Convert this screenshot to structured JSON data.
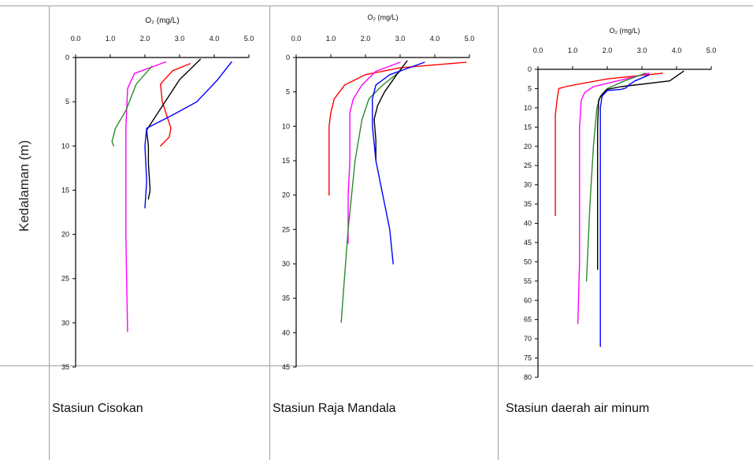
{
  "table": {
    "ylabel": "Kedalaman (m)",
    "stations": [
      "Stasiun Cisokan",
      "Stasiun Raja Mandala",
      "Stasiun daerah air minum"
    ]
  },
  "chart_data": [
    {
      "type": "line",
      "title": "O₂ (mg/L)",
      "xlabel": "O₂ (mg/L)",
      "ylabel": "Kedalaman (m)",
      "x_axis_position": "top",
      "xlim": [
        0,
        5
      ],
      "xticks": [
        "0.0",
        "1.0",
        "2.0",
        "3.0",
        "4.0",
        "5.0"
      ],
      "ylim": [
        0,
        35
      ],
      "y_inverted": true,
      "yticks": [
        "0",
        "5",
        "10",
        "15",
        "20",
        "25",
        "30",
        "35"
      ],
      "series": [
        {
          "color": "#ff00ff",
          "points": [
            [
              2.6,
              0.5
            ],
            [
              1.7,
              1.8
            ],
            [
              1.5,
              3.5
            ],
            [
              1.45,
              8
            ],
            [
              1.45,
              15
            ],
            [
              1.45,
              20
            ],
            [
              1.47,
              25
            ],
            [
              1.5,
              31
            ]
          ]
        },
        {
          "color": "#2b8a2b",
          "points": [
            [
              2.2,
              1
            ],
            [
              1.75,
              3
            ],
            [
              1.45,
              6
            ],
            [
              1.15,
              8
            ],
            [
              1.05,
              9.5
            ],
            [
              1.1,
              10
            ]
          ]
        },
        {
          "color": "#ff0000",
          "points": [
            [
              3.3,
              0.7
            ],
            [
              2.8,
              1.5
            ],
            [
              2.45,
              3
            ],
            [
              2.5,
              5
            ],
            [
              2.75,
              8
            ],
            [
              2.7,
              9
            ],
            [
              2.45,
              10
            ]
          ]
        },
        {
          "color": "#000000",
          "points": [
            [
              3.6,
              0.2
            ],
            [
              3.0,
              2.5
            ],
            [
              2.5,
              5.5
            ],
            [
              2.05,
              8.2
            ],
            [
              2.1,
              10
            ],
            [
              2.1,
              12
            ],
            [
              2.15,
              15
            ],
            [
              2.1,
              16
            ]
          ]
        },
        {
          "color": "#0000ff",
          "points": [
            [
              4.5,
              0.5
            ],
            [
              4.1,
              2.5
            ],
            [
              3.5,
              5
            ],
            [
              2.8,
              6.5
            ],
            [
              2.05,
              8
            ],
            [
              2.0,
              10
            ],
            [
              2.05,
              14
            ],
            [
              2.0,
              17
            ]
          ]
        }
      ]
    },
    {
      "type": "line",
      "title": "O₂ (mg/L)",
      "xlabel": "O₂ (mg/L)",
      "ylabel": "Kedalaman (m)",
      "x_axis_position": "top",
      "xlim": [
        0,
        5
      ],
      "xticks": [
        "0.0",
        "1.0",
        "2.0",
        "3.0",
        "4.0",
        "5.0"
      ],
      "ylim": [
        0,
        45
      ],
      "y_inverted": true,
      "yticks": [
        "0",
        "5",
        "10",
        "15",
        "20",
        "25",
        "30",
        "35",
        "40",
        "45"
      ],
      "series": [
        {
          "color": "#ff0000",
          "points": [
            [
              4.9,
              0.7
            ],
            [
              3.0,
              1.5
            ],
            [
              2.0,
              2.5
            ],
            [
              1.4,
              4
            ],
            [
              1.1,
              6
            ],
            [
              1.0,
              8
            ],
            [
              0.95,
              10
            ],
            [
              0.95,
              15
            ],
            [
              0.95,
              20
            ]
          ]
        },
        {
          "color": "#ff00ff",
          "points": [
            [
              3.0,
              0.7
            ],
            [
              2.3,
              2
            ],
            [
              1.9,
              4
            ],
            [
              1.65,
              6
            ],
            [
              1.55,
              8
            ],
            [
              1.55,
              15
            ],
            [
              1.5,
              20
            ],
            [
              1.5,
              25
            ],
            [
              1.5,
              27
            ]
          ]
        },
        {
          "color": "#2b8a2b",
          "points": [
            [
              3.0,
              2
            ],
            [
              2.5,
              4
            ],
            [
              2.1,
              6
            ],
            [
              1.9,
              9
            ],
            [
              1.7,
              15
            ],
            [
              1.5,
              25
            ],
            [
              1.35,
              35
            ],
            [
              1.3,
              38.5
            ]
          ]
        },
        {
          "color": "#000000",
          "points": [
            [
              3.2,
              0.5
            ],
            [
              2.9,
              2.5
            ],
            [
              2.55,
              5
            ],
            [
              2.35,
              7
            ],
            [
              2.25,
              9
            ],
            [
              2.3,
              12
            ],
            [
              2.3,
              15
            ]
          ]
        },
        {
          "color": "#0000ff",
          "points": [
            [
              3.7,
              0.7
            ],
            [
              2.7,
              2.5
            ],
            [
              2.3,
              4
            ],
            [
              2.2,
              6
            ],
            [
              2.2,
              10
            ],
            [
              2.3,
              15
            ],
            [
              2.5,
              20
            ],
            [
              2.7,
              25
            ],
            [
              2.8,
              30
            ]
          ]
        }
      ]
    },
    {
      "type": "line",
      "title": "O₂ (mg/L)",
      "xlabel": "O₂ (mg/L)",
      "ylabel": "Kedalaman (m)",
      "x_axis_position": "top",
      "xlim": [
        0,
        5
      ],
      "xticks": [
        "0.0",
        "1.0",
        "2.0",
        "3.0",
        "4.0",
        "5.0"
      ],
      "ylim": [
        0,
        80
      ],
      "y_inverted": true,
      "yticks": [
        "0",
        "5",
        "10",
        "15",
        "20",
        "25",
        "30",
        "35",
        "40",
        "45",
        "50",
        "55",
        "60",
        "65",
        "70",
        "75",
        "80"
      ],
      "series": [
        {
          "color": "#ff0000",
          "points": [
            [
              3.6,
              1
            ],
            [
              2.0,
              2.5
            ],
            [
              1.2,
              3.8
            ],
            [
              0.8,
              4.5
            ],
            [
              0.6,
              5
            ],
            [
              0.55,
              8
            ],
            [
              0.5,
              12
            ],
            [
              0.5,
              20
            ],
            [
              0.5,
              30
            ],
            [
              0.5,
              38
            ]
          ]
        },
        {
          "color": "#ff00ff",
          "points": [
            [
              3.2,
              1
            ],
            [
              2.3,
              3
            ],
            [
              1.6,
              4.5
            ],
            [
              1.35,
              6
            ],
            [
              1.25,
              8
            ],
            [
              1.2,
              15
            ],
            [
              1.2,
              30
            ],
            [
              1.2,
              50
            ],
            [
              1.15,
              66
            ]
          ]
        },
        {
          "color": "#2b8a2b",
          "points": [
            [
              3.1,
              1
            ],
            [
              2.5,
              3
            ],
            [
              2.0,
              5
            ],
            [
              1.8,
              7
            ],
            [
              1.7,
              10
            ],
            [
              1.6,
              20
            ],
            [
              1.5,
              35
            ],
            [
              1.45,
              45
            ],
            [
              1.4,
              55
            ]
          ]
        },
        {
          "color": "#000000",
          "points": [
            [
              4.2,
              0.5
            ],
            [
              3.8,
              3
            ],
            [
              2.4,
              4.5
            ],
            [
              2.0,
              5.2
            ],
            [
              1.85,
              6.5
            ],
            [
              1.75,
              8
            ],
            [
              1.72,
              15
            ],
            [
              1.72,
              30
            ],
            [
              1.72,
              52
            ]
          ]
        },
        {
          "color": "#0000ff",
          "points": [
            [
              3.2,
              1.5
            ],
            [
              2.8,
              3
            ],
            [
              2.6,
              4.2
            ],
            [
              2.55,
              4.8
            ],
            [
              2.4,
              5.2
            ],
            [
              2.0,
              5.5
            ],
            [
              1.85,
              7
            ],
            [
              1.8,
              10
            ],
            [
              1.8,
              30
            ],
            [
              1.8,
              50
            ],
            [
              1.8,
              72
            ]
          ]
        }
      ]
    }
  ]
}
